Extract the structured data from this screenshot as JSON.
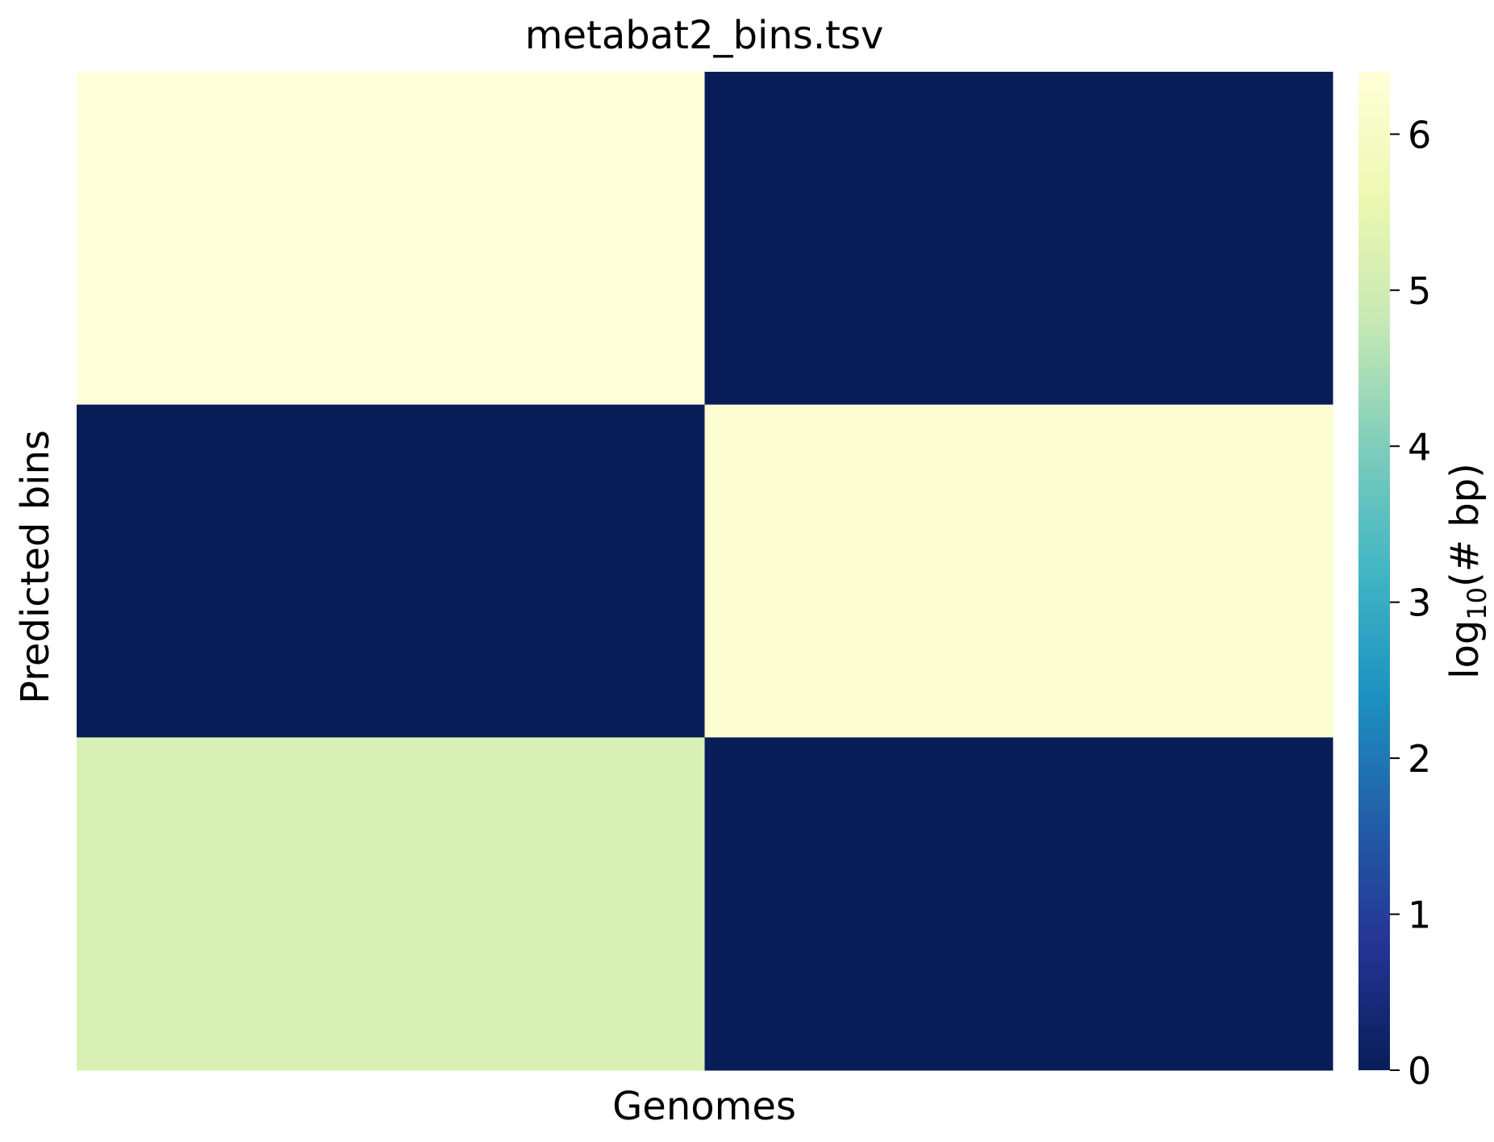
{
  "chart_data": {
    "type": "heatmap",
    "title": "metabat2_bins.tsv",
    "xlabel": "Genomes",
    "ylabel": "Predicted bins",
    "rows": 3,
    "columns": 2,
    "values": [
      [
        6.4,
        0.0
      ],
      [
        0.0,
        6.25
      ],
      [
        5.15,
        0.0
      ]
    ],
    "colorbar": {
      "label_main": "log",
      "label_sub": "10",
      "label_rest": "(# bp)",
      "range": [
        0,
        6.4
      ],
      "ticks": [
        "0",
        "1",
        "2",
        "3",
        "4",
        "5",
        "6"
      ],
      "colormap": "YlGnBu"
    },
    "grid": false,
    "colors": {
      "low": "#081d58",
      "high": "#ffffd9"
    }
  }
}
